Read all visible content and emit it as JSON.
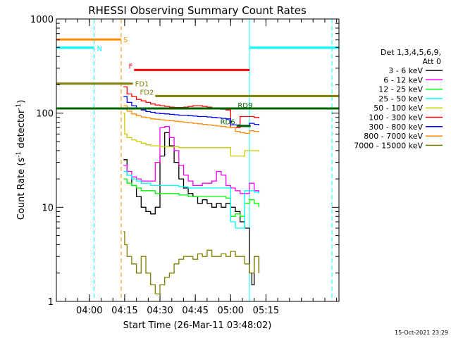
{
  "chart_data": {
    "type": "line",
    "title": "RHESSI Observing Summary Count Rates",
    "xlabel": "Start Time (26-Mar-11 03:48:02)",
    "ylabel_main": "Count Rate (s",
    "ylabel_sup": "-1",
    "ylabel_tail": " detector",
    "ylabel_sup2": "-1",
    "ylabel_close": ")",
    "ylog": true,
    "ylim": [
      1,
      1000
    ],
    "xlim_minutes": [
      226.0,
      346.0
    ],
    "x_ticks": [
      {
        "label": "04:00",
        "minutes": 240
      },
      {
        "label": "04:15",
        "minutes": 255
      },
      {
        "label": "04:30",
        "minutes": 270
      },
      {
        "label": "04:45",
        "minutes": 285
      },
      {
        "label": "05:00",
        "minutes": 300
      },
      {
        "label": "05:15",
        "minutes": 315
      }
    ],
    "y_ticks": [
      {
        "label": "1",
        "value": 1
      },
      {
        "label": "10",
        "value": 10
      },
      {
        "label": "100",
        "value": 100
      },
      {
        "label": "1000",
        "value": 1000
      }
    ],
    "legend_header": [
      "Det 1,3,4,5,6,9,",
      "Att 0"
    ],
    "series": [
      {
        "name": "3 - 6 keV",
        "color": "#000000",
        "x": [
          254.5,
          256,
          258,
          260,
          262,
          264,
          266,
          268,
          270,
          272,
          274,
          276,
          278,
          280,
          282,
          284,
          286,
          288,
          290,
          292,
          294,
          296,
          298,
          300,
          302,
          304,
          306,
          308,
          309,
          310,
          312
        ],
        "y": [
          32,
          22,
          17,
          13,
          10,
          9,
          8.5,
          10,
          35,
          62,
          45,
          30,
          20,
          16,
          14,
          13,
          11,
          12,
          11,
          10,
          11,
          10,
          11,
          10,
          9,
          7,
          6,
          2,
          1.5,
          3,
          2
        ]
      },
      {
        "name": "6 - 12 keV",
        "color": "#ff00ff",
        "x": [
          254.5,
          256,
          258,
          260,
          262,
          264,
          266,
          268,
          270,
          272,
          274,
          276,
          278,
          280,
          282,
          284,
          286,
          288,
          290,
          292,
          294,
          296,
          298,
          300,
          302,
          304,
          306,
          308,
          310,
          312
        ],
        "y": [
          28,
          24,
          21,
          20,
          19,
          19,
          19,
          30,
          70,
          72,
          55,
          40,
          28,
          22,
          19,
          17,
          17,
          18,
          18,
          19,
          24,
          22,
          17,
          16,
          15,
          14,
          14,
          18,
          15,
          14
        ]
      },
      {
        "name": "12 - 25 keV",
        "color": "#00ff00",
        "x": [
          254.5,
          256,
          258,
          260,
          262,
          264,
          266,
          268,
          270,
          272,
          274,
          276,
          278,
          280,
          282,
          284,
          286,
          288,
          290,
          292,
          294,
          296,
          298,
          300,
          302,
          304,
          306,
          308,
          310,
          312
        ],
        "y": [
          20,
          18,
          17,
          16,
          15,
          15,
          15,
          14,
          14,
          14,
          14,
          14,
          13.5,
          13.5,
          13,
          13,
          13,
          13,
          13,
          13,
          13,
          13,
          12.5,
          8,
          8.5,
          8,
          11,
          12,
          11,
          10
        ]
      },
      {
        "name": "25 - 50 keV",
        "color": "#00ffff",
        "x": [
          254.5,
          256,
          258,
          260,
          262,
          264,
          266,
          268,
          270,
          272,
          274,
          276,
          278,
          280,
          282,
          284,
          286,
          288,
          290,
          292,
          294,
          296,
          298,
          300,
          302,
          304,
          306,
          308,
          310,
          312
        ],
        "y": [
          24,
          22,
          20,
          19,
          18,
          18,
          17,
          17,
          17,
          17,
          17,
          17,
          16.5,
          16.5,
          16,
          16,
          16,
          16,
          16,
          16,
          16,
          16,
          16,
          7,
          6,
          6,
          15,
          15,
          14.5,
          14
        ]
      },
      {
        "name": "50 - 100 keV",
        "color": "#cccc00",
        "x": [
          254.5,
          255,
          256,
          258,
          260,
          262,
          264,
          266,
          268,
          270,
          272,
          274,
          276,
          278,
          280,
          282,
          284,
          286,
          288,
          290,
          292,
          294,
          296,
          298,
          300,
          302,
          304,
          306,
          308,
          310,
          312
        ],
        "y": [
          100,
          60,
          55,
          52,
          50,
          48,
          46,
          45,
          45,
          44,
          44,
          44,
          44,
          43,
          43,
          43,
          43,
          43,
          43,
          43,
          43,
          43,
          43,
          43,
          35,
          35,
          35,
          40,
          40,
          40,
          39
        ]
      },
      {
        "name": "100 - 300 keV",
        "color": "#ff0000",
        "x": [
          254.5,
          256,
          258,
          260,
          262,
          264,
          266,
          268,
          270,
          272,
          274,
          276,
          278,
          280,
          282,
          284,
          286,
          288,
          290,
          292,
          294,
          296,
          298,
          300,
          302,
          304,
          306,
          308,
          310,
          312
        ],
        "y": [
          190,
          160,
          150,
          140,
          135,
          130,
          125,
          122,
          120,
          118,
          116,
          115,
          115,
          116,
          118,
          120,
          120,
          118,
          116,
          114,
          112,
          110,
          108,
          70,
          70,
          92,
          92,
          92,
          90,
          88
        ]
      },
      {
        "name": "300 - 800 keV",
        "color": "#0000ff",
        "x": [
          254.5,
          256,
          258,
          260,
          262,
          264,
          266,
          268,
          270,
          272,
          274,
          276,
          278,
          280,
          282,
          284,
          286,
          288,
          290,
          292,
          294,
          296,
          298,
          300,
          302,
          304,
          306,
          308,
          310,
          312
        ],
        "y": [
          150,
          130,
          120,
          113,
          108,
          104,
          102,
          100,
          99,
          98,
          97,
          96,
          95,
          95,
          94,
          93,
          92,
          92,
          91,
          90,
          89,
          88,
          87,
          75,
          75,
          72,
          72,
          78,
          76,
          74
        ]
      },
      {
        "name": "800 - 7000 keV",
        "color": "#ff8c00",
        "x": [
          254.5,
          256,
          258,
          260,
          262,
          264,
          266,
          268,
          270,
          272,
          274,
          276,
          278,
          280,
          282,
          284,
          286,
          288,
          290,
          292,
          294,
          296,
          298,
          300,
          302,
          304,
          306,
          308,
          310,
          312
        ],
        "y": [
          120,
          105,
          98,
          94,
          91,
          89,
          87,
          86,
          85,
          84,
          83,
          82,
          81,
          80,
          79,
          78,
          77,
          76,
          75,
          74,
          73,
          72,
          71,
          70,
          64,
          62,
          61,
          65,
          64,
          63
        ]
      },
      {
        "name": "7000 - 15000 keV",
        "color": "#808000",
        "x": [
          254.5,
          255,
          256,
          258,
          260,
          262,
          264,
          266,
          268,
          270,
          272,
          274,
          276,
          278,
          280,
          282,
          284,
          286,
          288,
          290,
          292,
          294,
          296,
          298,
          300,
          302,
          304,
          306,
          308,
          310,
          312
        ],
        "y": [
          5.5,
          4,
          3,
          2.5,
          2,
          3,
          2,
          1.5,
          1.2,
          1.5,
          1.8,
          2,
          2.5,
          2.8,
          3,
          3,
          2.8,
          3.2,
          3,
          3.5,
          3,
          3,
          3.2,
          3,
          3.4,
          3,
          3,
          2.5,
          2,
          3,
          2
        ]
      }
    ],
    "flag_bars": [
      {
        "label": "S",
        "color": "#ff8c00",
        "segments": [
          [
            226,
            253.5
          ]
        ],
        "y_frac": 0.033,
        "label_pos": "end"
      },
      {
        "label": "N",
        "color": "#00ffff",
        "segments": [
          [
            226,
            242
          ],
          [
            308,
            346
          ]
        ],
        "y_frac": 0.046,
        "label_pos": "first-end"
      },
      {
        "label": "F",
        "color": "#ff0000",
        "segments": [
          [
            259,
            308
          ]
        ],
        "y_frac": 0.082,
        "label_pos": "start"
      },
      {
        "label": "FD1",
        "color": "#808000",
        "segments": [
          [
            226,
            258.5
          ]
        ],
        "y_frac": 0.104,
        "label_pos": "end"
      },
      {
        "label": "FD2",
        "color": "#808000",
        "segments": [
          [
            268,
            346
          ]
        ],
        "y_frac": 0.124,
        "label_pos": "start"
      },
      {
        "label": "RD9",
        "color": "#006400",
        "segments": [
          [
            226,
            346
          ]
        ],
        "y_frac": 0.144,
        "label_pos": "mid-right"
      },
      {
        "label": "RD6",
        "color": "#006400",
        "segments": [
          [
            302.5,
            308.5
          ]
        ],
        "y_frac": 0.172,
        "label_pos": "start"
      }
    ],
    "vertical_lines": [
      {
        "minutes": 242,
        "color": "#00ffff",
        "dashed": true
      },
      {
        "minutes": 253.5,
        "color": "#ff8c00",
        "dashed": true
      },
      {
        "minutes": 308,
        "color": "#00ffff",
        "dashed": false
      },
      {
        "minutes": 343,
        "color": "#00ffff",
        "dashed": true
      }
    ],
    "grid": false,
    "legend_position": "right"
  },
  "footer": {
    "timestamp": "15-Oct-2021 23:29"
  }
}
